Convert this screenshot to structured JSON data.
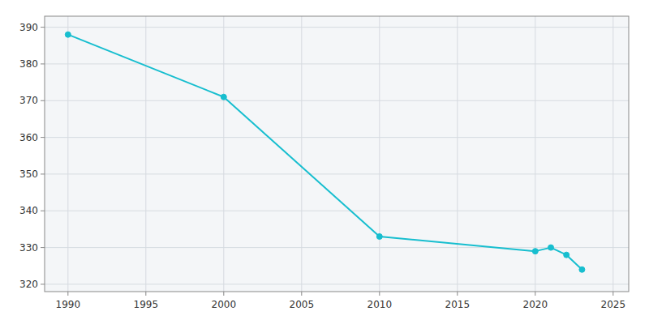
{
  "chart_data": {
    "type": "line",
    "x": [
      1990,
      2000,
      2010,
      2020,
      2021,
      2022,
      2023
    ],
    "values": [
      388,
      371,
      333,
      329,
      330,
      328,
      324
    ],
    "color": "#17BECF",
    "marker": "circle",
    "xlim": [
      1988.5,
      2026
    ],
    "ylim": [
      318,
      393
    ],
    "xticks": [
      1990,
      1995,
      2000,
      2005,
      2010,
      2015,
      2020,
      2025
    ],
    "yticks": [
      320,
      330,
      340,
      350,
      360,
      370,
      380,
      390
    ],
    "grid": true
  }
}
